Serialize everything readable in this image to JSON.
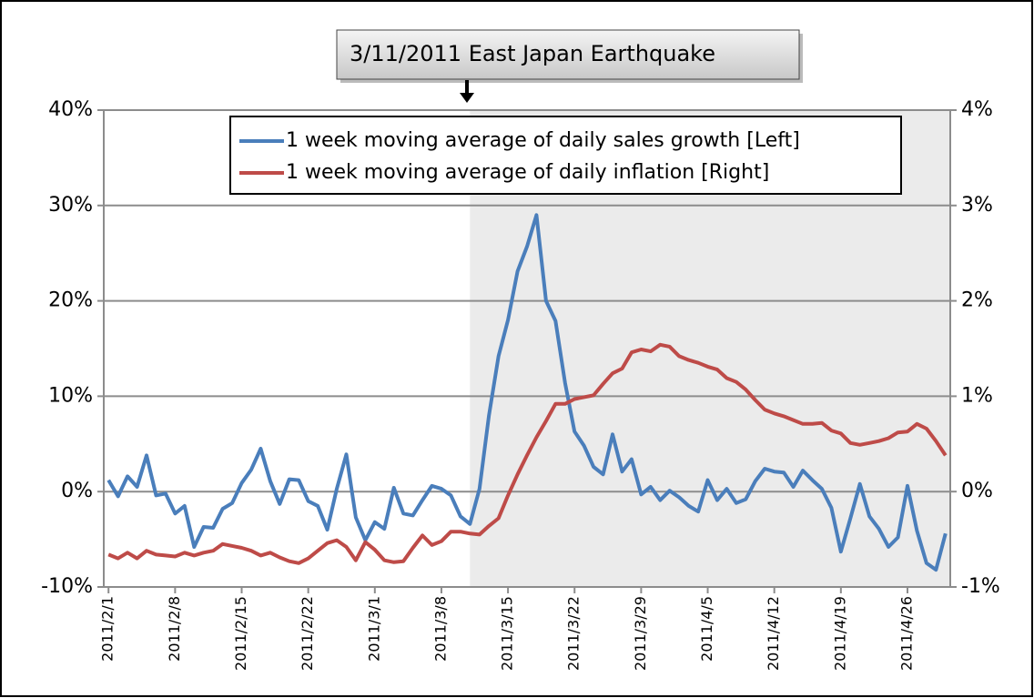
{
  "chart_data": {
    "type": "line",
    "annotation": "3/11/2011 East Japan Earthquake",
    "shaded_from": 38,
    "legend": "top",
    "grid": true,
    "categories": [
      "2011/2/1",
      null,
      null,
      null,
      null,
      null,
      null,
      "2011/2/8",
      null,
      null,
      null,
      null,
      null,
      null,
      "2011/2/15",
      null,
      null,
      null,
      null,
      null,
      null,
      "2011/2/22",
      null,
      null,
      null,
      null,
      null,
      null,
      "2011/3/1",
      null,
      null,
      null,
      null,
      null,
      null,
      "2011/3/8",
      null,
      null,
      null,
      null,
      null,
      null,
      "2011/3/15",
      null,
      null,
      null,
      null,
      null,
      null,
      "2011/3/22",
      null,
      null,
      null,
      null,
      null,
      null,
      "2011/3/29",
      null,
      null,
      null,
      null,
      null,
      null,
      "2011/4/5",
      null,
      null,
      null,
      null,
      null,
      null,
      "2011/4/12",
      null,
      null,
      null,
      null,
      null,
      null,
      "2011/4/19",
      null,
      null,
      null,
      null,
      null,
      null,
      "2011/4/26",
      null,
      null,
      null,
      null
    ],
    "ylim": [
      -10,
      40
    ],
    "yticks": [
      {
        "value": -10,
        "label": "-10%"
      },
      {
        "value": 0,
        "label": "0%"
      },
      {
        "value": 10,
        "label": "10%"
      },
      {
        "value": 20,
        "label": "20%"
      },
      {
        "value": 30,
        "label": "30%"
      },
      {
        "value": 40,
        "label": "40%"
      }
    ],
    "y2lim": [
      -1,
      4
    ],
    "y2ticks": [
      {
        "value": -1,
        "label": "-1%"
      },
      {
        "value": 0,
        "label": "0%"
      },
      {
        "value": 1,
        "label": "1%"
      },
      {
        "value": 2,
        "label": "2%"
      },
      {
        "value": 3,
        "label": "3%"
      },
      {
        "value": 4,
        "label": "4%"
      }
    ],
    "series": [
      {
        "name": "1 week moving average of daily sales growth [Left]",
        "color": "#4a7ebb",
        "values": [
          1.2,
          -0.5,
          1.6,
          0.5,
          3.8,
          -0.4,
          -0.2,
          -2.3,
          -1.5,
          -5.8,
          -3.7,
          -3.8,
          -1.8,
          -1.2,
          0.9,
          2.3,
          4.5,
          1.1,
          -1.3,
          1.3,
          1.2,
          -1.0,
          -1.5,
          -4.0,
          0.3,
          3.9,
          -2.7,
          -5.1,
          -3.2,
          -3.9,
          0.4,
          -2.3,
          -2.5,
          -0.9,
          0.6,
          0.3,
          -0.4,
          -2.6,
          -3.4,
          0.3,
          8.0,
          14.2,
          18.0,
          23.1,
          25.7,
          29.0,
          20.0,
          17.9,
          11.4,
          6.3,
          4.8,
          2.6,
          1.8,
          6.0,
          2.1,
          3.4,
          -0.3,
          0.5,
          -0.9,
          0.1,
          -0.6,
          -1.5,
          -2.1,
          1.2,
          -0.9,
          0.3,
          -1.2,
          -0.8,
          1.1,
          2.4,
          2.1,
          2.0,
          0.5,
          2.2,
          1.2,
          0.3,
          -1.7,
          -6.3,
          -2.8,
          0.8,
          -2.6,
          -3.9,
          -5.8,
          -4.8,
          0.6,
          -4.1,
          -7.5,
          -8.2,
          -4.4
        ]
      },
      {
        "name": "1 week moving average of daily inflation [Right]",
        "color": "#be4b48",
        "axis": "y2",
        "values": [
          -0.66,
          -0.7,
          -0.64,
          -0.7,
          -0.62,
          -0.66,
          -0.67,
          -0.68,
          -0.64,
          -0.67,
          -0.64,
          -0.62,
          -0.55,
          -0.57,
          -0.59,
          -0.62,
          -0.67,
          -0.64,
          -0.69,
          -0.73,
          -0.75,
          -0.7,
          -0.62,
          -0.54,
          -0.51,
          -0.58,
          -0.72,
          -0.53,
          -0.61,
          -0.72,
          -0.74,
          -0.73,
          -0.59,
          -0.46,
          -0.56,
          -0.52,
          -0.42,
          -0.42,
          -0.44,
          -0.45,
          -0.36,
          -0.28,
          -0.04,
          0.18,
          0.38,
          0.57,
          0.74,
          0.92,
          0.92,
          0.97,
          0.99,
          1.01,
          1.13,
          1.24,
          1.29,
          1.46,
          1.49,
          1.47,
          1.54,
          1.52,
          1.42,
          1.38,
          1.35,
          1.31,
          1.28,
          1.19,
          1.15,
          1.07,
          0.96,
          0.86,
          0.82,
          0.79,
          0.75,
          0.71,
          0.71,
          0.72,
          0.64,
          0.61,
          0.51,
          0.49,
          0.51,
          0.53,
          0.56,
          0.62,
          0.63,
          0.71,
          0.66,
          0.53,
          0.38
        ]
      }
    ]
  }
}
